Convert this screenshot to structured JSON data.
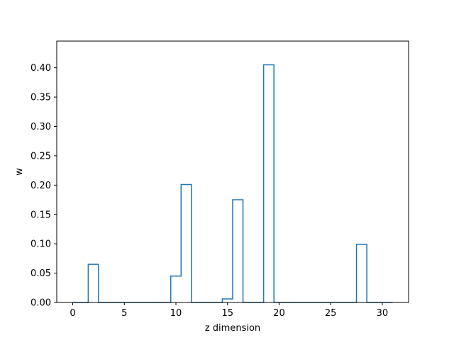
{
  "chart_data": {
    "type": "step",
    "xlabel": "z dimension",
    "ylabel": "w",
    "xlim": [
      -1.55,
      32.55
    ],
    "ylim": [
      0,
      0.4455
    ],
    "xticks": [
      0,
      5,
      10,
      15,
      20,
      25,
      30
    ],
    "yticks": [
      0.0,
      0.05,
      0.1,
      0.15,
      0.2,
      0.25,
      0.3,
      0.35,
      0.4
    ],
    "ytick_labels": [
      "0.00",
      "0.05",
      "0.10",
      "0.15",
      "0.20",
      "0.25",
      "0.30",
      "0.35",
      "0.40"
    ],
    "step_where": "mid",
    "x": [
      0,
      1,
      2,
      3,
      4,
      5,
      6,
      7,
      8,
      9,
      10,
      11,
      12,
      13,
      14,
      15,
      16,
      17,
      18,
      19,
      20,
      21,
      22,
      23,
      24,
      25,
      26,
      27,
      28,
      29,
      30,
      31
    ],
    "y": [
      0,
      0,
      0.065,
      0,
      0,
      0,
      0,
      0,
      0,
      0,
      0.045,
      0.201,
      0,
      0,
      0,
      0.006,
      0.175,
      0,
      0,
      0.405,
      0,
      0,
      0,
      0,
      0,
      0,
      0,
      0,
      0.099,
      0,
      0,
      0
    ],
    "line_color": "#1f77b4",
    "grid": false
  }
}
